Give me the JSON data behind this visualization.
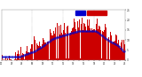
{
  "n_minutes": 1440,
  "background_color": "#ffffff",
  "bar_color": "#cc0000",
  "median_color": "#0000cc",
  "ylim": [
    0,
    25
  ],
  "seed": 42,
  "figsize": [
    1.6,
    0.87
  ],
  "dpi": 100
}
